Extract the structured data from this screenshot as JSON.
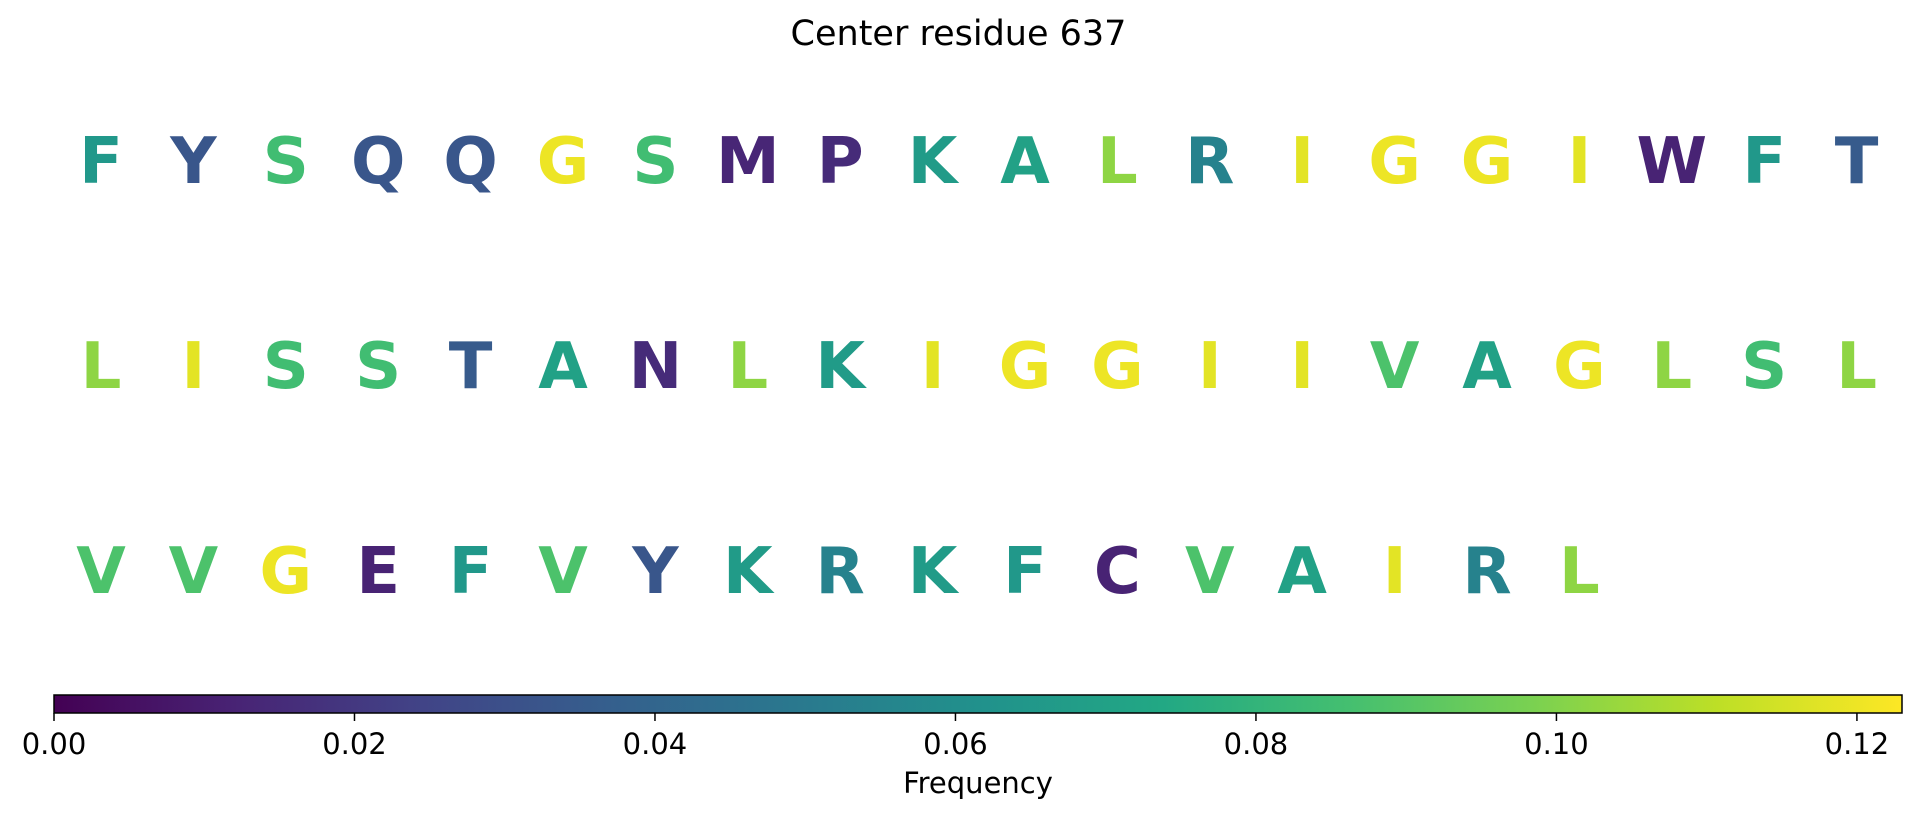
{
  "chart_data": {
    "type": "heatmap",
    "title": "Center residue 637",
    "sequence_rows": [
      [
        "F",
        "Y",
        "S",
        "Q",
        "Q",
        "G",
        "S",
        "M",
        "P",
        "K",
        "A",
        "L",
        "R",
        "I",
        "G",
        "G",
        "I",
        "W",
        "F",
        "T"
      ],
      [
        "L",
        "I",
        "S",
        "S",
        "T",
        "A",
        "N",
        "L",
        "K",
        "I",
        "G",
        "G",
        "I",
        "I",
        "V",
        "A",
        "G",
        "L",
        "S",
        "L"
      ],
      [
        "V",
        "V",
        "G",
        "E",
        "F",
        "V",
        "Y",
        "K",
        "R",
        "K",
        "F",
        "C",
        "V",
        "A",
        "I",
        "R",
        "L"
      ]
    ],
    "frequencies": {
      "A": 0.07,
      "C": 0.012,
      "E": 0.012,
      "F": 0.065,
      "G": 0.12,
      "I": 0.118,
      "K": 0.067,
      "L": 0.102,
      "M": 0.013,
      "N": 0.015,
      "P": 0.015,
      "Q": 0.033,
      "R": 0.054,
      "S": 0.085,
      "T": 0.035,
      "V": 0.088,
      "W": 0.012,
      "Y": 0.033
    },
    "colorbar": {
      "label": "Frequency",
      "colormap": "viridis",
      "range": [
        0,
        0.123
      ],
      "ticks": [
        0.0,
        0.02,
        0.04,
        0.06,
        0.08,
        0.1,
        0.12
      ],
      "tick_labels": [
        "0.00",
        "0.02",
        "0.04",
        "0.06",
        "0.08",
        "0.10",
        "0.12"
      ]
    }
  }
}
